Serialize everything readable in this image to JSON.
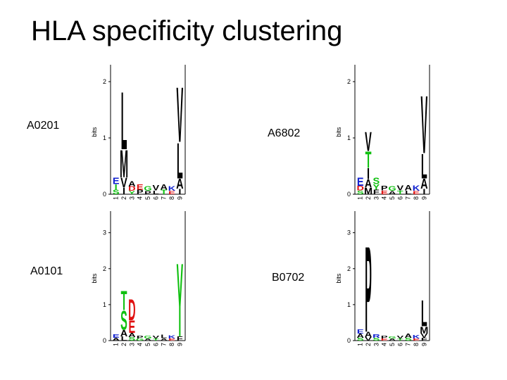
{
  "title": "HLA specificity clustering",
  "colors": {
    "hydrophobic": "#000000",
    "polar": "#10c010",
    "acidic": "#e01010",
    "basic": "#1020d0",
    "other": "#d0a020"
  },
  "logos": [
    {
      "allele": "A0201",
      "ylabel": "bits",
      "yticks": [
        "0",
        "1",
        "2"
      ],
      "ymax": 2.3,
      "positions": [
        "1",
        "2",
        "3",
        "4",
        "5",
        "6",
        "7",
        "8",
        "9"
      ],
      "stacks": [
        [
          {
            "l": "E",
            "h": 0.12,
            "c": "basic"
          },
          {
            "l": "I",
            "h": 0.1,
            "c": "polar"
          },
          {
            "l": "S",
            "h": 0.08,
            "c": "polar"
          }
        ],
        [
          {
            "l": "L",
            "h": 1.05,
            "c": "hydrophobic"
          },
          {
            "l": "M",
            "h": 0.5,
            "c": "hydrophobic"
          },
          {
            "l": "V",
            "h": 0.18,
            "c": "hydrophobic"
          },
          {
            "l": "I",
            "h": 0.12,
            "c": "hydrophobic"
          }
        ],
        [
          {
            "l": "A",
            "h": 0.1,
            "c": "hydrophobic"
          },
          {
            "l": "D",
            "h": 0.08,
            "c": "acidic"
          },
          {
            "l": "Y",
            "h": 0.06,
            "c": "polar"
          }
        ],
        [
          {
            "l": "E",
            "h": 0.1,
            "c": "acidic"
          },
          {
            "l": "P",
            "h": 0.08,
            "c": "hydrophobic"
          }
        ],
        [
          {
            "l": "G",
            "h": 0.08,
            "c": "polar"
          },
          {
            "l": "P",
            "h": 0.06,
            "c": "hydrophobic"
          }
        ],
        [
          {
            "l": "V",
            "h": 0.1,
            "c": "hydrophobic"
          },
          {
            "l": "L",
            "h": 0.07,
            "c": "hydrophobic"
          }
        ],
        [
          {
            "l": "A",
            "h": 0.1,
            "c": "hydrophobic"
          },
          {
            "l": "T",
            "h": 0.08,
            "c": "polar"
          }
        ],
        [
          {
            "l": "K",
            "h": 0.08,
            "c": "basic"
          },
          {
            "l": "E",
            "h": 0.06,
            "c": "acidic"
          }
        ],
        [
          {
            "l": "V",
            "h": 1.0,
            "c": "hydrophobic"
          },
          {
            "l": "L",
            "h": 0.65,
            "c": "hydrophobic"
          },
          {
            "l": "A",
            "h": 0.18,
            "c": "hydrophobic"
          },
          {
            "l": "I",
            "h": 0.1,
            "c": "hydrophobic"
          }
        ]
      ]
    },
    {
      "allele": "A6802",
      "ylabel": "bits",
      "yticks": [
        "0",
        "1",
        "2"
      ],
      "ymax": 2.3,
      "positions": [
        "1",
        "2",
        "3",
        "4",
        "5",
        "6",
        "7",
        "8",
        "9"
      ],
      "stacks": [
        [
          {
            "l": "E",
            "h": 0.15,
            "c": "basic"
          },
          {
            "l": "D",
            "h": 0.08,
            "c": "acidic"
          },
          {
            "l": "S",
            "h": 0.07,
            "c": "polar"
          }
        ],
        [
          {
            "l": "V",
            "h": 0.35,
            "c": "hydrophobic"
          },
          {
            "l": "T",
            "h": 0.3,
            "c": "polar"
          },
          {
            "l": "I",
            "h": 0.2,
            "c": "hydrophobic"
          },
          {
            "l": "A",
            "h": 0.15,
            "c": "hydrophobic"
          },
          {
            "l": "M",
            "h": 0.12,
            "c": "hydrophobic"
          }
        ],
        [
          {
            "l": "S",
            "h": 0.12,
            "c": "polar"
          },
          {
            "l": "Y",
            "h": 0.1,
            "c": "polar"
          },
          {
            "l": "F",
            "h": 0.08,
            "c": "hydrophobic"
          }
        ],
        [
          {
            "l": "P",
            "h": 0.08,
            "c": "hydrophobic"
          },
          {
            "l": "E",
            "h": 0.07,
            "c": "acidic"
          }
        ],
        [
          {
            "l": "G",
            "h": 0.08,
            "c": "polar"
          },
          {
            "l": "A",
            "h": 0.06,
            "c": "hydrophobic"
          }
        ],
        [
          {
            "l": "V",
            "h": 0.09,
            "c": "hydrophobic"
          },
          {
            "l": "T",
            "h": 0.07,
            "c": "polar"
          }
        ],
        [
          {
            "l": "A",
            "h": 0.1,
            "c": "hydrophobic"
          },
          {
            "l": "L",
            "h": 0.07,
            "c": "hydrophobic"
          }
        ],
        [
          {
            "l": "K",
            "h": 0.1,
            "c": "basic"
          },
          {
            "l": "E",
            "h": 0.06,
            "c": "acidic"
          }
        ],
        [
          {
            "l": "V",
            "h": 1.05,
            "c": "hydrophobic"
          },
          {
            "l": "L",
            "h": 0.45,
            "c": "hydrophobic"
          },
          {
            "l": "A",
            "h": 0.18,
            "c": "hydrophobic"
          },
          {
            "l": "I",
            "h": 0.1,
            "c": "hydrophobic"
          }
        ]
      ]
    },
    {
      "allele": "A0101",
      "ylabel": "bits",
      "yticks": [
        "0",
        "1",
        "2",
        "3"
      ],
      "ymax": 3.6,
      "positions": [
        "1",
        "2",
        "3",
        "4",
        "5",
        "6",
        "7",
        "8",
        "9"
      ],
      "stacks": [
        [
          {
            "l": "E",
            "h": 0.1,
            "c": "basic"
          },
          {
            "l": "A",
            "h": 0.08,
            "c": "hydrophobic"
          }
        ],
        [
          {
            "l": "S",
            "h": 0.55,
            "c": "polar"
          },
          {
            "l": "T",
            "h": 0.55,
            "c": "polar"
          },
          {
            "l": "A",
            "h": 0.18,
            "c": "hydrophobic"
          },
          {
            "l": "L",
            "h": 0.12,
            "c": "hydrophobic"
          }
        ],
        [
          {
            "l": "D",
            "h": 0.6,
            "c": "acidic"
          },
          {
            "l": "E",
            "h": 0.35,
            "c": "acidic"
          },
          {
            "l": "A",
            "h": 0.12,
            "c": "hydrophobic"
          },
          {
            "l": "S",
            "h": 0.1,
            "c": "polar"
          }
        ],
        [
          {
            "l": "P",
            "h": 0.08,
            "c": "hydrophobic"
          },
          {
            "l": "G",
            "h": 0.06,
            "c": "polar"
          }
        ],
        [
          {
            "l": "G",
            "h": 0.08,
            "c": "polar"
          },
          {
            "l": "A",
            "h": 0.06,
            "c": "hydrophobic"
          }
        ],
        [
          {
            "l": "V",
            "h": 0.08,
            "c": "hydrophobic"
          },
          {
            "l": "T",
            "h": 0.06,
            "c": "polar"
          }
        ],
        [
          {
            "l": "L",
            "h": 0.1,
            "c": "hydrophobic"
          },
          {
            "l": "A",
            "h": 0.07,
            "c": "hydrophobic"
          }
        ],
        [
          {
            "l": "K",
            "h": 0.09,
            "c": "basic"
          },
          {
            "l": "E",
            "h": 0.06,
            "c": "acidic"
          }
        ],
        [
          {
            "l": "Y",
            "h": 2.1,
            "c": "polar"
          },
          {
            "l": "F",
            "h": 0.12,
            "c": "hydrophobic"
          }
        ]
      ]
    },
    {
      "allele": "B0702",
      "ylabel": "bits",
      "yticks": [
        "0",
        "1",
        "2",
        "3"
      ],
      "ymax": 3.6,
      "positions": [
        "1",
        "2",
        "3",
        "4",
        "5",
        "6",
        "7",
        "8",
        "9"
      ],
      "stacks": [
        [
          {
            "l": "A",
            "h": 0.12,
            "c": "hydrophobic"
          },
          {
            "l": "E",
            "h": 0.12,
            "c": "basic"
          },
          {
            "l": "S",
            "h": 0.08,
            "c": "polar"
          }
        ],
        [
          {
            "l": "P",
            "h": 2.45,
            "c": "hydrophobic"
          },
          {
            "l": "A",
            "h": 0.15,
            "c": "hydrophobic"
          },
          {
            "l": "V",
            "h": 0.1,
            "c": "hydrophobic"
          }
        ],
        [
          {
            "l": "R",
            "h": 0.1,
            "c": "basic"
          },
          {
            "l": "S",
            "h": 0.08,
            "c": "polar"
          }
        ],
        [
          {
            "l": "P",
            "h": 0.08,
            "c": "hydrophobic"
          },
          {
            "l": "E",
            "h": 0.06,
            "c": "acidic"
          }
        ],
        [
          {
            "l": "G",
            "h": 0.07,
            "c": "polar"
          },
          {
            "l": "A",
            "h": 0.06,
            "c": "hydrophobic"
          }
        ],
        [
          {
            "l": "V",
            "h": 0.08,
            "c": "hydrophobic"
          },
          {
            "l": "T",
            "h": 0.06,
            "c": "polar"
          }
        ],
        [
          {
            "l": "A",
            "h": 0.12,
            "c": "hydrophobic"
          },
          {
            "l": "S",
            "h": 0.08,
            "c": "polar"
          }
        ],
        [
          {
            "l": "K",
            "h": 0.1,
            "c": "basic"
          },
          {
            "l": "E",
            "h": 0.06,
            "c": "acidic"
          }
        ],
        [
          {
            "l": "L",
            "h": 0.75,
            "c": "hydrophobic"
          },
          {
            "l": "M",
            "h": 0.2,
            "c": "hydrophobic"
          },
          {
            "l": "V",
            "h": 0.12,
            "c": "hydrophobic"
          },
          {
            "l": "F",
            "h": 0.08,
            "c": "hydrophobic"
          }
        ]
      ]
    }
  ]
}
